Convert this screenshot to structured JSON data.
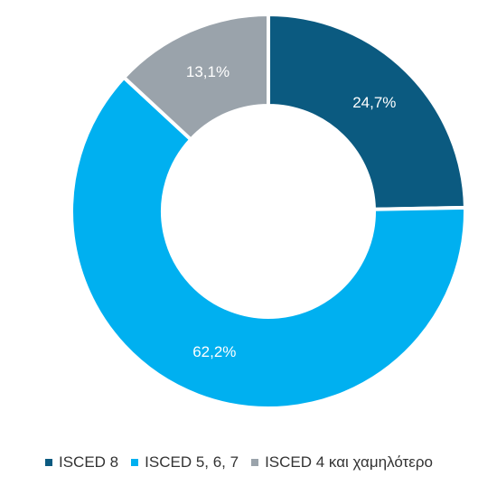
{
  "chart_data": {
    "type": "pie",
    "donut": true,
    "title": "",
    "categories": [
      "ISCED 8",
      "ISCED 5, 6, 7",
      "ISCED 4 και χαμηλότερο"
    ],
    "values": [
      24.7,
      62.2,
      13.1
    ],
    "data_labels": [
      "24,7%",
      "62,2%",
      "13,1%"
    ],
    "colors": [
      "#0b5a80",
      "#00b0f0",
      "#9aa3ab"
    ],
    "start_angle_deg": 0,
    "direction": "clockwise",
    "legend_position": "bottom"
  }
}
